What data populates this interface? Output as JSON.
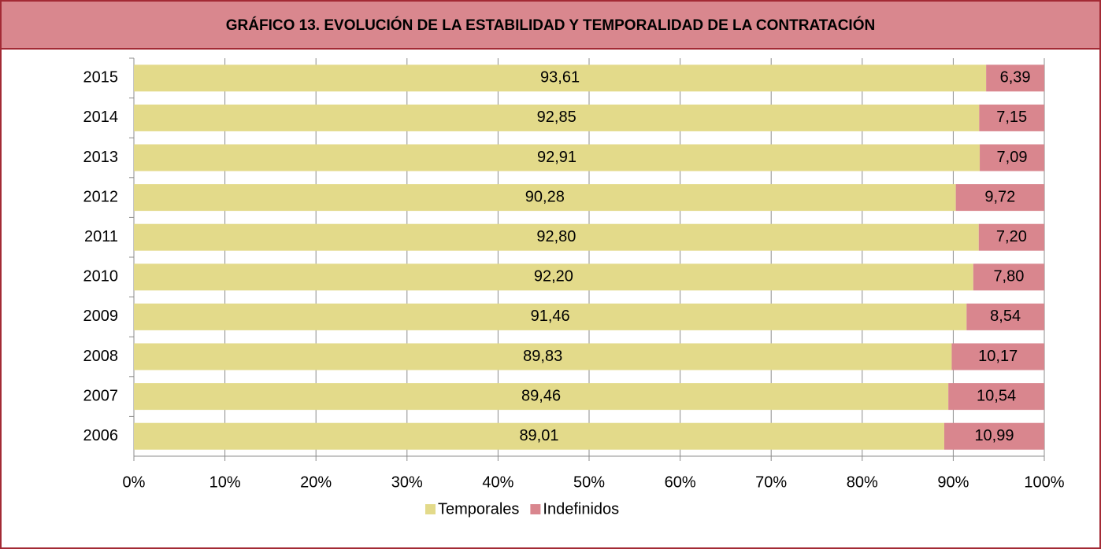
{
  "chart_data": {
    "type": "stacked_barh",
    "title": "GRÁFICO 13. EVOLUCIÓN DE LA ESTABILIDAD Y TEMPORALIDAD DE LA CONTRATACIÓN",
    "categories": [
      "2015",
      "2014",
      "2013",
      "2012",
      "2011",
      "2010",
      "2009",
      "2008",
      "2007",
      "2006"
    ],
    "series": [
      {
        "name": "Temporales",
        "color": "#e3da8a",
        "values": [
          93.61,
          92.85,
          92.91,
          90.28,
          92.8,
          92.2,
          91.46,
          89.83,
          89.46,
          89.01
        ],
        "value_labels": [
          "93,61",
          "92,85",
          "92,91",
          "90,28",
          "92,80",
          "92,20",
          "91,46",
          "89,83",
          "89,46",
          "89,01"
        ]
      },
      {
        "name": "Indefinidos",
        "color": "#d9868e",
        "values": [
          6.39,
          7.15,
          7.09,
          9.72,
          7.2,
          7.8,
          8.54,
          10.17,
          10.54,
          10.99
        ],
        "value_labels": [
          "6,39",
          "7,15",
          "7,09",
          "9,72",
          "7,20",
          "7,80",
          "8,54",
          "10,17",
          "10,54",
          "10,99"
        ]
      }
    ],
    "xlim": [
      0,
      100
    ],
    "xticks": [
      {
        "value": 0,
        "label": "0%"
      },
      {
        "value": 10,
        "label": "10%"
      },
      {
        "value": 20,
        "label": "20%"
      },
      {
        "value": 30,
        "label": "30%"
      },
      {
        "value": 40,
        "label": "40%"
      },
      {
        "value": 50,
        "label": "50%"
      },
      {
        "value": 60,
        "label": "60%"
      },
      {
        "value": 70,
        "label": "70%"
      },
      {
        "value": 80,
        "label": "80%"
      },
      {
        "value": 90,
        "label": "90%"
      },
      {
        "value": 100,
        "label": "100%"
      }
    ],
    "grid": true,
    "legend": "bottom"
  }
}
